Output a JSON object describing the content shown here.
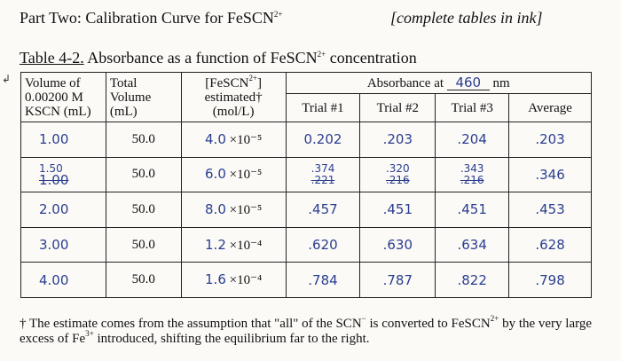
{
  "header": {
    "part_title": "Part Two: Calibration Curve for FeSCN",
    "part_title_sup": "2+",
    "complete_note": "[complete tables in ink]"
  },
  "table": {
    "caption_num": "Table 4-2.",
    "caption_text": " Absorbance as a function of FeSCN",
    "caption_sup": "2+",
    "caption_tail": " concentration",
    "headers": {
      "volume": [
        "Volume of",
        "0.00200 M",
        "KSCN (mL)"
      ],
      "total": [
        "Total",
        "Volume",
        "(mL)"
      ],
      "conc": [
        "[FeSCN",
        "2+",
        "]",
        "estimated†",
        "(mol/L)"
      ],
      "absorbance_prefix": "Absorbance at",
      "wavelength": "460",
      "unit": "nm",
      "trials": [
        "Trial #1",
        "Trial #2",
        "Trial #3",
        "Average"
      ]
    },
    "rows": [
      {
        "vol": "1.00",
        "vol_old": "",
        "total": "50.0",
        "conc_mant": "4.0",
        "conc_exp": "×10⁻⁵",
        "t1": "0.202",
        "t1_old": "",
        "t2": ".203",
        "t2_old": "",
        "t3": ".204",
        "t3_old": "",
        "avg": ".203"
      },
      {
        "vol": "1.50",
        "vol_old": "1.00",
        "total": "50.0",
        "conc_mant": "6.0",
        "conc_exp": "×10⁻⁵",
        "t1": ".374",
        "t1_old": ".221",
        "t2": ".320",
        "t2_old": ".216",
        "t3": ".343",
        "t3_old": ".216",
        "avg": ".346"
      },
      {
        "vol": "2.00",
        "vol_old": "",
        "total": "50.0",
        "conc_mant": "8.0",
        "conc_exp": "×10⁻⁵",
        "t1": ".457",
        "t1_old": "",
        "t2": ".451",
        "t2_old": "",
        "t3": ".451",
        "t3_old": "",
        "avg": ".453"
      },
      {
        "vol": "3.00",
        "vol_old": "",
        "total": "50.0",
        "conc_mant": "1.2",
        "conc_exp": "×10⁻⁴",
        "t1": ".620",
        "t1_old": "",
        "t2": ".630",
        "t2_old": "",
        "t3": ".634",
        "t3_old": "",
        "avg": ".628"
      },
      {
        "vol": "4.00",
        "vol_old": "",
        "total": "50.0",
        "conc_mant": "1.6",
        "conc_exp": "×10⁻⁴",
        "t1": ".784",
        "t1_old": "",
        "t2": ".787",
        "t2_old": "",
        "t3": ".822",
        "t3_old": "",
        "avg": ".798"
      }
    ]
  },
  "footnote": {
    "part1": "† The estimate comes from the assumption that \"all\" of the SCN",
    "minus": "−",
    "part2": " is converted to FeSCN",
    "sup1": "2+",
    "part3": " by the very large excess of Fe",
    "sup2": "3+",
    "part4": " introduced, shifting the equilibrium far to the right."
  },
  "margin_mark": "↲",
  "ink_color": "#2a3d8f"
}
